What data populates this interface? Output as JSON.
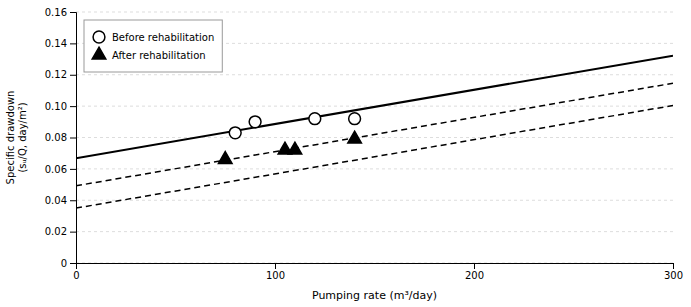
{
  "chart_data": {
    "type": "scatter",
    "xlabel": "Pumping rate (m³/day)",
    "ylabel": "Specific drawdown\n(sᵤ/Q, day/m²)",
    "xlim": [
      0,
      300
    ],
    "ylim": [
      0,
      0.16
    ],
    "xticks": [
      0,
      100,
      200,
      300
    ],
    "yticks": [
      0,
      0.02,
      0.04,
      0.06,
      0.08,
      {
        "value": 0.1,
        "label": "0.10"
      },
      0.12,
      0.14,
      0.16
    ],
    "grid": "y",
    "legend": "upper left",
    "series": [
      {
        "type": "line",
        "line_style": "solid",
        "color": "#000000",
        "x": [
          0,
          300
        ],
        "values": [
          0.0668,
          0.1322
        ]
      },
      {
        "type": "line",
        "line_style": "dashed",
        "color": "#000000",
        "x": [
          0,
          300
        ],
        "values": [
          0.0492,
          0.1146
        ]
      },
      {
        "type": "line",
        "line_style": "dashed",
        "color": "#000000",
        "x": [
          0,
          300
        ],
        "values": [
          0.035,
          0.1004
        ]
      },
      {
        "name": "Before rehabilitation",
        "type": "scatter",
        "marker": "open-circle",
        "color": "#000000",
        "x": [
          80,
          90,
          120,
          140
        ],
        "values": [
          0.083,
          0.09,
          0.092,
          0.092
        ]
      },
      {
        "name": "After rehabilitation",
        "type": "scatter",
        "marker": "triangle",
        "color": "#000000",
        "x": [
          75,
          105,
          110,
          140
        ],
        "values": [
          0.066,
          0.072,
          0.072,
          0.079
        ]
      }
    ]
  }
}
